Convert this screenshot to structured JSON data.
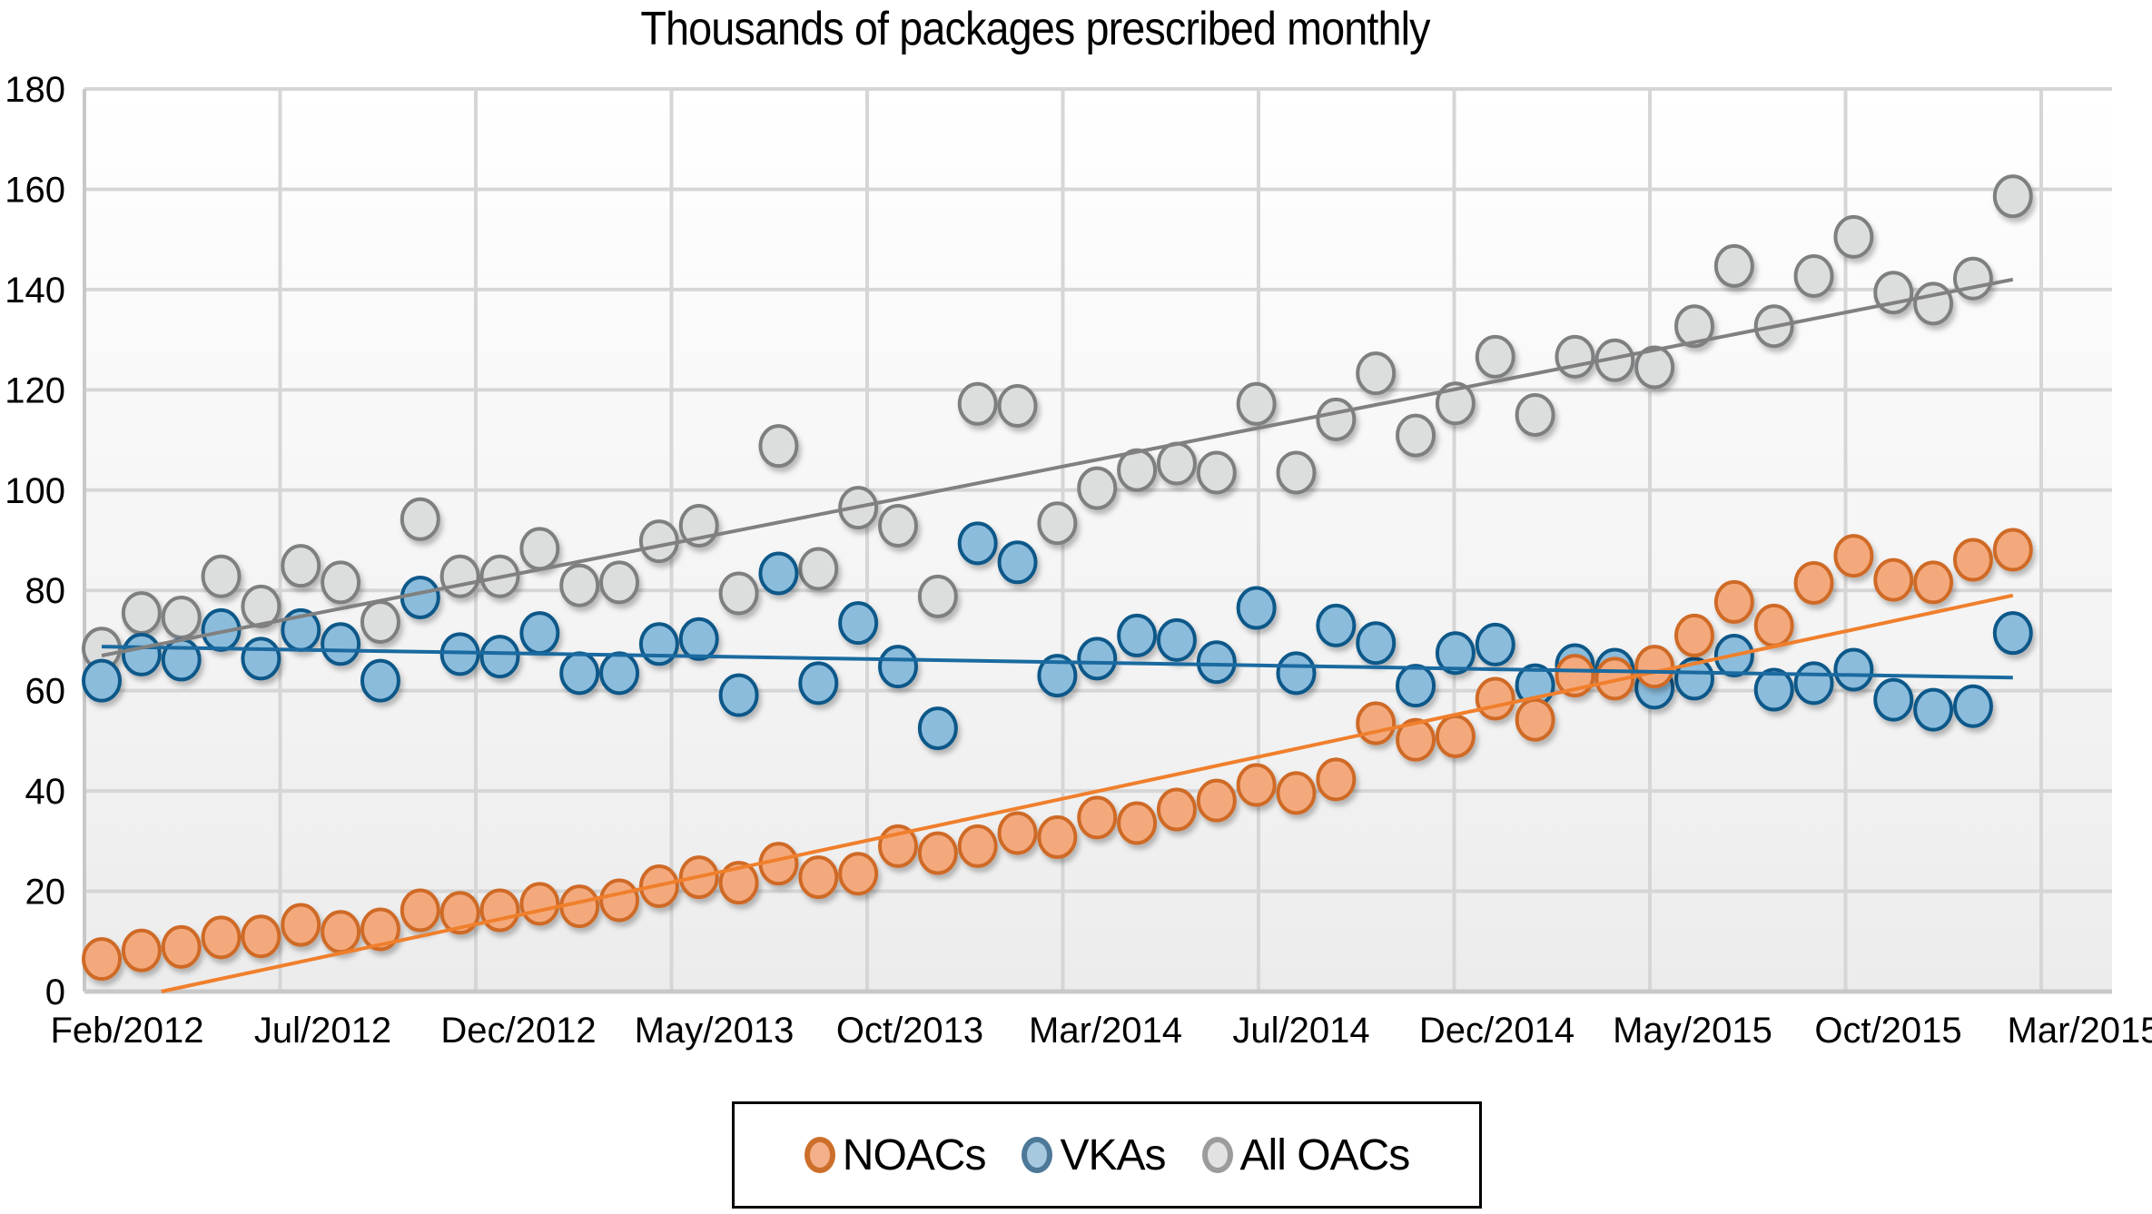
{
  "chart_data": {
    "type": "scatter",
    "title": "Thousands of packages prescribed monthly",
    "xlabel": "",
    "ylabel": "",
    "ylim": [
      0,
      180
    ],
    "yticks": [
      0,
      20,
      40,
      60,
      80,
      100,
      120,
      140,
      160,
      180
    ],
    "ytick_labels": [
      "0",
      "20",
      "40",
      "60",
      "80",
      "100",
      "120",
      "140",
      "160",
      "180"
    ],
    "xtick_labels": [
      "Feb/2012",
      "Jul/2012",
      "Dec/2012",
      "May/2013",
      "Oct/2013",
      "Mar/2014",
      "Jul/2014",
      "Dec/2014",
      "May/2015",
      "Oct/2015",
      "Mar/2015"
    ],
    "x_unit": "month",
    "x_start": "Feb/2012",
    "n_points": 49,
    "grid": true,
    "legend_position": "bottom",
    "series": [
      {
        "name": "NOACs",
        "fill": "#f4a97c",
        "stroke": "#cf6a27",
        "trend_color": "#f07f2c",
        "trend": {
          "start_index": 1.5,
          "start_value": 0,
          "end_index": 48,
          "end_value": 79
        },
        "values": [
          6.5,
          8.2,
          8.9,
          10.8,
          11.0,
          13.3,
          11.9,
          12.4,
          16.2,
          15.7,
          16.2,
          17.5,
          17.0,
          18.2,
          21.0,
          22.8,
          21.7,
          25.5,
          22.8,
          23.5,
          29.0,
          27.6,
          29.0,
          31.6,
          30.8,
          34.7,
          33.6,
          36.3,
          38.1,
          41.2,
          39.6,
          42.3,
          53.5,
          50.2,
          50.9,
          58.4,
          54.2,
          63.0,
          62.4,
          64.8,
          71.0,
          77.7,
          73.0,
          81.5,
          86.9,
          82.1,
          81.6,
          86.1,
          88.1
        ]
      },
      {
        "name": "VKAs",
        "fill": "#8bbcdc",
        "stroke": "#0e5889",
        "trend_color": "#1a6aa0",
        "trend": {
          "start_index": 0,
          "start_value": 68.8,
          "end_index": 48,
          "end_value": 62.6
        },
        "values": [
          62.0,
          67.2,
          66.2,
          72.1,
          66.4,
          72.1,
          69.3,
          62.0,
          78.6,
          67.3,
          66.8,
          71.5,
          63.5,
          63.5,
          69.3,
          70.3,
          59.1,
          83.4,
          61.5,
          73.5,
          64.8,
          52.5,
          89.4,
          85.6,
          63.0,
          66.4,
          71.0,
          70.1,
          65.7,
          76.5,
          63.5,
          73.0,
          69.5,
          61.0,
          67.5,
          69.2,
          61.1,
          65.1,
          64.2,
          60.6,
          62.4,
          67.0,
          60.2,
          61.5,
          64.2,
          58.2,
          56.2,
          56.9,
          71.5
        ]
      },
      {
        "name": "All OACs",
        "fill": "#dcdddd",
        "stroke": "#7d7f80",
        "trend_color": "#808080",
        "trend": {
          "start_index": 0,
          "start_value": 67.0,
          "end_index": 48,
          "end_value": 142.0
        },
        "values": [
          68.4,
          75.5,
          74.6,
          82.8,
          76.8,
          84.9,
          81.6,
          73.7,
          94.2,
          82.8,
          82.8,
          88.3,
          81.0,
          81.6,
          89.8,
          92.9,
          79.4,
          108.8,
          84.3,
          96.5,
          92.9,
          78.8,
          117.2,
          116.8,
          93.4,
          100.4,
          104.0,
          105.3,
          103.5,
          117.2,
          103.5,
          114.1,
          123.3,
          110.9,
          117.3,
          126.6,
          115.0,
          126.6,
          125.9,
          124.5,
          132.7,
          144.7,
          132.7,
          142.7,
          150.5,
          139.4,
          137.2,
          142.2,
          158.6
        ]
      }
    ]
  },
  "legend": {
    "items": [
      {
        "label": "NOACs",
        "fill": "#f4b08a",
        "stroke": "#cc6f2a"
      },
      {
        "label": "VKAs",
        "fill": "#a6c9e0",
        "stroke": "#4d7898"
      },
      {
        "label": "All OACs",
        "fill": "#e2e2e2",
        "stroke": "#9c9c9c"
      }
    ]
  }
}
